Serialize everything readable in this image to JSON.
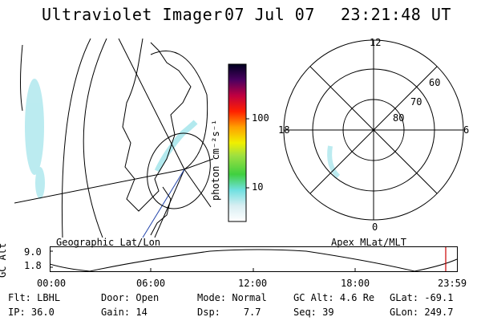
{
  "header": {
    "title": "Ultraviolet Imager",
    "date": "07 Jul 07",
    "time": "23:21:48 UT"
  },
  "geo_panel": {
    "label": "Geographic Lat/Lon"
  },
  "colorbar": {
    "unit": "photon cm⁻²s⁻¹",
    "ticks": [
      "100",
      "10"
    ]
  },
  "polar_panel": {
    "label": "Apex MLat/MLT",
    "mlt_labels": {
      "top": "12",
      "bottom": "0",
      "left": "18",
      "right": "6"
    },
    "lat_labels": [
      "60",
      "70",
      "80"
    ]
  },
  "timeline": {
    "ylabel": "GC Alt",
    "ymax": "9.0",
    "ymin": "1.8",
    "times": [
      "00:00",
      "06:00",
      "12:00",
      "18:00",
      "23:59"
    ]
  },
  "status": {
    "row1": [
      {
        "label": "Flt:",
        "value": "LBHL"
      },
      {
        "label": "Door:",
        "value": "Open"
      },
      {
        "label": "Mode:",
        "value": "Normal"
      },
      {
        "label": "GC Alt:",
        "value": "4.6 Re"
      },
      {
        "label": "GLat:",
        "value": "-69.1"
      }
    ],
    "row2": [
      {
        "label": "IP:",
        "value": "36.0"
      },
      {
        "label": "Gain:",
        "value": "14"
      },
      {
        "label": "Dsp:",
        "value": "7.7"
      },
      {
        "label": "Seq:",
        "value": "39"
      },
      {
        "label": "GLon:",
        "value": "249.7"
      }
    ]
  },
  "colors": {
    "cyan_emission": "#7fe0e8",
    "current_time_marker": "#cc0000"
  }
}
